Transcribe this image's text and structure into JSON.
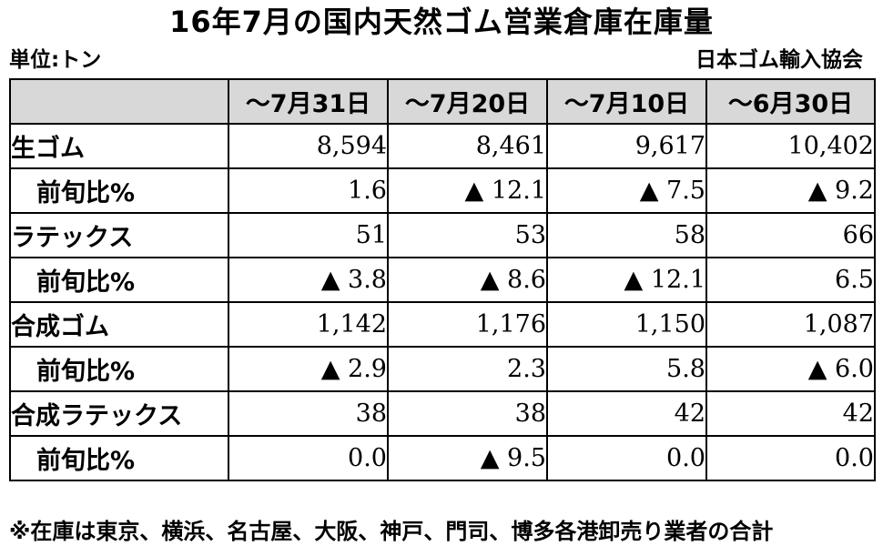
{
  "title": "16年7月の国内天然ゴム営業倉庫在庫量",
  "unit_label": "単位:トン",
  "source": "日本ゴム輸入協会",
  "periods": [
    "～7月31日",
    "～7月20日",
    "～7月10日",
    "～6月30日"
  ],
  "rows": [
    {
      "label": "生ゴム",
      "values": [
        "8,594",
        "8,461",
        "9,617",
        "10,402"
      ]
    },
    {
      "label": "前旬比%",
      "values": [
        "1.6",
        "▲ 12.1",
        "▲ 7.5",
        "▲ 9.2"
      ]
    },
    {
      "label": "ラテックス",
      "values": [
        "51",
        "53",
        "58",
        "66"
      ]
    },
    {
      "label": "前旬比%",
      "values": [
        "▲ 3.8",
        "▲ 8.6",
        "▲ 12.1",
        "6.5"
      ]
    },
    {
      "label": "合成ゴム",
      "values": [
        "1,142",
        "1,176",
        "1,150",
        "1,087"
      ]
    },
    {
      "label": "前旬比%",
      "values": [
        "▲ 2.9",
        "2.3",
        "5.8",
        "▲ 6.0"
      ]
    },
    {
      "label": "合成ラテックス",
      "values": [
        "38",
        "38",
        "42",
        "42"
      ]
    },
    {
      "label": "前旬比%",
      "values": [
        "0.0",
        "▲ 9.5",
        "0.0",
        "0.0"
      ]
    }
  ],
  "footnote": "※在庫は東京、横浜、名古屋、大阪、神戸、門司、博多各港卸売り業者の合計",
  "colors": {
    "header_bg": "#d8d8d8",
    "border": "#000000",
    "text": "#000000"
  }
}
